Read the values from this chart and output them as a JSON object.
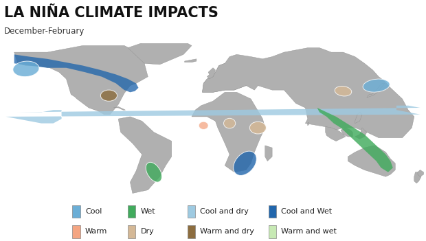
{
  "title": "LA NIÑA CLIMATE IMPACTS",
  "subtitle": "December-February",
  "bg_color": "#ffffff",
  "ocean_color": "#c8c8c8",
  "land_color": "#b0b0b0",
  "land_edge_color": "#909090",
  "legend": [
    {
      "label": "Cool",
      "color": "#6baed6"
    },
    {
      "label": "Wet",
      "color": "#41ab5d"
    },
    {
      "label": "Cool and dry",
      "color": "#9ecae1"
    },
    {
      "label": "Cool and Wet",
      "color": "#2166ac"
    },
    {
      "label": "Warm",
      "color": "#f4a582"
    },
    {
      "label": "Dry",
      "color": "#d4b896"
    },
    {
      "label": "Warm and dry",
      "color": "#8c6d3f"
    },
    {
      "label": "Warm and wet",
      "color": "#c7e9b4"
    }
  ],
  "title_fontsize": 15,
  "subtitle_fontsize": 8.5,
  "legend_fontsize": 8,
  "map_lat_min": -60,
  "map_lat_max": 80,
  "map_lon_min": -180,
  "map_lon_max": 180
}
